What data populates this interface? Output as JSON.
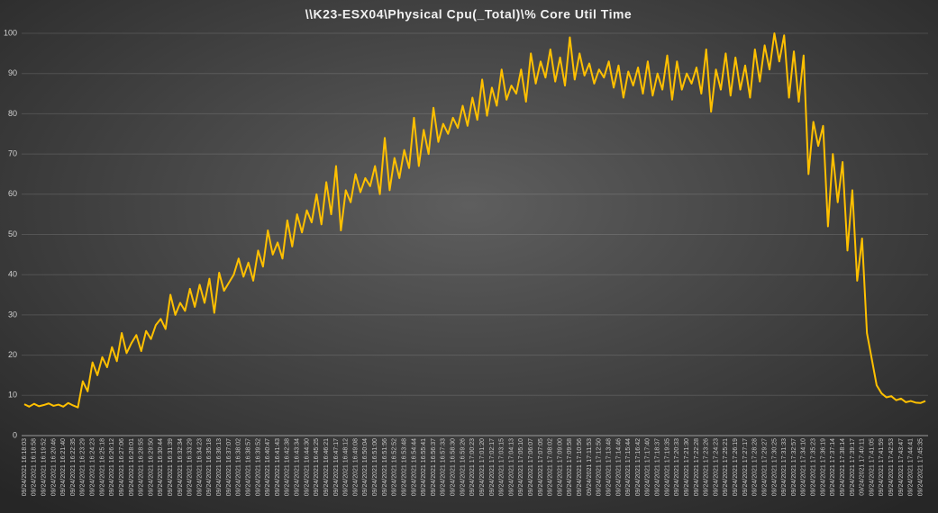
{
  "chart_data": {
    "type": "line",
    "title": "\\\\K23-ESX04\\Physical Cpu(_Total)\\% Core Util Time",
    "color": "#ffc000",
    "grid": true,
    "ylim": [
      0,
      100
    ],
    "yticks": [
      0,
      10,
      20,
      30,
      40,
      50,
      60,
      70,
      80,
      90,
      100
    ],
    "categories": [
      "09/24/2021 16:18:03",
      null,
      "09/24/2021 16:18:58",
      null,
      "09/24/2021 16:19:52",
      null,
      "09/24/2021 16:20:46",
      null,
      "09/24/2021 16:21:40",
      null,
      "09/24/2021 16:22:35",
      null,
      "09/24/2021 16:23:29",
      null,
      "09/24/2021 16:24:23",
      null,
      "09/24/2021 16:25:18",
      null,
      "09/24/2021 16:26:12",
      null,
      "09/24/2021 16:27:06",
      null,
      "09/24/2021 16:28:01",
      null,
      "09/24/2021 16:28:55",
      null,
      "09/24/2021 16:29:50",
      null,
      "09/24/2021 16:30:44",
      null,
      "09/24/2021 16:31:39",
      null,
      "09/24/2021 16:32:34",
      null,
      "09/24/2021 16:33:29",
      null,
      "09/24/2021 16:34:23",
      null,
      "09/24/2021 16:35:18",
      null,
      "09/24/2021 16:36:13",
      null,
      "09/24/2021 16:37:07",
      null,
      "09/24/2021 16:38:02",
      null,
      "09/24/2021 16:38:57",
      null,
      "09/24/2021 16:39:52",
      null,
      "09/24/2021 16:40:47",
      null,
      "09/24/2021 16:41:43",
      null,
      "09/24/2021 16:42:38",
      null,
      "09/24/2021 16:43:34",
      null,
      "09/24/2021 16:44:30",
      null,
      "09/24/2021 16:45:25",
      null,
      "09/24/2021 16:46:21",
      null,
      "09/24/2021 16:47:17",
      null,
      "09/24/2021 16:48:12",
      null,
      "09/24/2021 16:49:08",
      null,
      "09/24/2021 16:50:04",
      null,
      "09/24/2021 16:51:00",
      null,
      "09/24/2021 16:51:56",
      null,
      "09/24/2021 16:52:52",
      null,
      "09/24/2021 16:53:48",
      null,
      "09/24/2021 16:54:44",
      null,
      "09/24/2021 16:55:41",
      null,
      "09/24/2021 16:56:37",
      null,
      "09/24/2021 16:57:33",
      null,
      "09/24/2021 16:58:30",
      null,
      "09/24/2021 16:59:26",
      null,
      "09/24/2021 17:00:23",
      null,
      "09/24/2021 17:01:20",
      null,
      "09/24/2021 17:02:17",
      null,
      "09/24/2021 17:03:15",
      null,
      "09/24/2021 17:04:13",
      null,
      "09/24/2021 17:05:10",
      null,
      "09/24/2021 17:06:07",
      null,
      "09/24/2021 17:07:05",
      null,
      "09/24/2021 17:08:02",
      null,
      "09/24/2021 17:09:00",
      null,
      "09/24/2021 17:09:58",
      null,
      "09/24/2021 17:10:56",
      null,
      "09/24/2021 17:11:53",
      null,
      "09/24/2021 17:12:50",
      null,
      "09/24/2021 17:13:48",
      null,
      "09/24/2021 17:14:46",
      null,
      "09/24/2021 17:15:44",
      null,
      "09/24/2021 17:16:42",
      null,
      "09/24/2021 17:17:40",
      null,
      "09/24/2021 17:18:37",
      null,
      "09/24/2021 17:19:35",
      null,
      "09/24/2021 17:20:33",
      null,
      "09/24/2021 17:21:30",
      null,
      "09/24/2021 17:22:28",
      null,
      "09/24/2021 17:23:26",
      null,
      "09/24/2021 17:24:23",
      null,
      "09/24/2021 17:25:21",
      null,
      "09/24/2021 17:26:19",
      null,
      "09/24/2021 17:27:17",
      null,
      "09/24/2021 17:28:28",
      null,
      "09/24/2021 17:29:27",
      null,
      "09/24/2021 17:30:25",
      null,
      "09/24/2021 17:31:33",
      null,
      "09/24/2021 17:32:57",
      null,
      "09/24/2021 17:34:10",
      null,
      "09/24/2021 17:35:23",
      null,
      "09/24/2021 17:36:19",
      null,
      "09/24/2021 17:37:14",
      null,
      "09/24/2021 17:38:14",
      null,
      "09/24/2021 17:39:17",
      null,
      "09/24/2021 17:40:11",
      null,
      "09/24/2021 17:41:05",
      null,
      "09/24/2021 17:41:59",
      null,
      "09/24/2021 17:42:53",
      null,
      "09/24/2021 17:43:47",
      null,
      "09/24/2021 17:44:41",
      null,
      "09/24/2021 17:45:35",
      null
    ],
    "values": [
      7.8,
      7.2,
      7.9,
      7.3,
      7.6,
      8.0,
      7.4,
      7.7,
      7.2,
      8.1,
      7.5,
      7.0,
      13.5,
      11.0,
      18.2,
      15.0,
      19.5,
      17.0,
      22.0,
      18.5,
      25.5,
      20.5,
      23.0,
      25.0,
      21.0,
      26.0,
      24.0,
      27.5,
      29.0,
      26.5,
      35.0,
      30.0,
      33.0,
      31.0,
      36.5,
      32.0,
      37.5,
      33.0,
      39.0,
      30.5,
      40.5,
      36.0,
      38.0,
      40.0,
      44.0,
      39.5,
      43.0,
      38.5,
      46.0,
      42.0,
      51.0,
      45.0,
      48.0,
      44.0,
      53.5,
      47.0,
      55.0,
      50.5,
      56.0,
      53.0,
      60.0,
      52.5,
      63.0,
      55.0,
      67.0,
      51.0,
      61.0,
      58.0,
      65.0,
      60.5,
      64.0,
      62.0,
      67.0,
      60.0,
      74.0,
      61.0,
      69.0,
      64.0,
      71.0,
      66.5,
      79.0,
      67.0,
      76.0,
      70.0,
      81.5,
      73.0,
      77.5,
      75.0,
      79.0,
      76.5,
      82.0,
      77.0,
      84.0,
      78.5,
      88.5,
      79.5,
      86.5,
      82.0,
      91.0,
      83.5,
      87.0,
      85.0,
      91.0,
      83.0,
      95.0,
      87.5,
      93.0,
      89.0,
      96.0,
      88.0,
      94.0,
      87.0,
      99.0,
      88.5,
      95.0,
      89.5,
      92.5,
      87.5,
      91.0,
      89.0,
      93.0,
      86.5,
      92.0,
      84.0,
      90.5,
      87.0,
      91.5,
      85.0,
      93.0,
      84.5,
      90.0,
      86.0,
      94.5,
      83.5,
      93.0,
      86.0,
      90.0,
      87.5,
      91.5,
      85.0,
      96.0,
      80.5,
      91.0,
      86.0,
      95.0,
      84.5,
      94.0,
      86.0,
      92.0,
      84.0,
      96.0,
      88.0,
      97.0,
      91.0,
      100.0,
      93.0,
      99.5,
      84.0,
      95.5,
      83.0,
      94.5,
      65.0,
      78.0,
      72.0,
      77.0,
      52.0,
      70.0,
      58.0,
      68.0,
      46.0,
      61.0,
      38.5,
      49.0,
      25.5,
      19.0,
      12.5,
      10.5,
      9.5,
      9.8,
      8.8,
      9.2,
      8.3,
      8.6,
      8.2,
      8.1,
      8.6
    ]
  }
}
